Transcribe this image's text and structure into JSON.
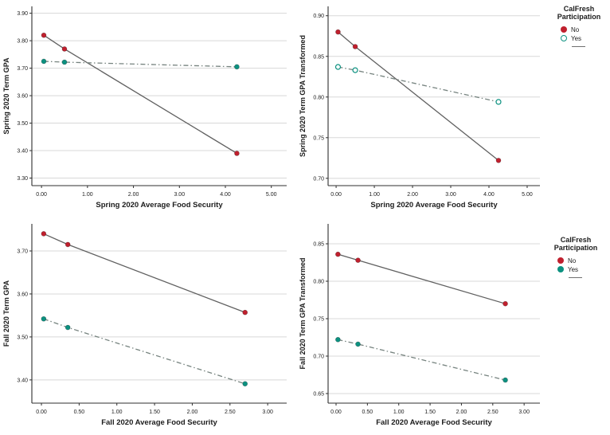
{
  "colors": {
    "no": "#c0202e",
    "yes": "#0c9180",
    "fit_line": "#606060",
    "dash_line": "#76837f",
    "grid": "#d8d8d8",
    "axis": "#2f2f2f",
    "text": "#1c1c1c",
    "background": "#ffffff"
  },
  "legends": {
    "top": {
      "title": [
        "CalFresh",
        "Participation"
      ],
      "items": [
        {
          "label": "No",
          "marker": "filled",
          "color": "#c0202e"
        },
        {
          "label": "Yes",
          "marker": "open",
          "color": "#0c9180"
        }
      ],
      "line_swatch": true
    },
    "bottom": {
      "title": [
        "CalFresh",
        "Participation"
      ],
      "items": [
        {
          "label": "No",
          "marker": "filled",
          "color": "#c0202e"
        },
        {
          "label": "Yes",
          "marker": "filled",
          "color": "#0c9180"
        }
      ],
      "line_swatch": true
    }
  },
  "chart_data": [
    {
      "type": "scatter",
      "id": "spring-term-gpa",
      "xlabel": "Spring 2020 Average Food Security",
      "ylabel": "Spring 2020 Term GPA",
      "xlim": [
        -0.21,
        5.334
      ],
      "ylim": [
        3.2725,
        3.925
      ],
      "xticks": [
        {
          "v": 0,
          "label": "0.00"
        },
        {
          "v": 1,
          "label": "1.00"
        },
        {
          "v": 2,
          "label": "2.00"
        },
        {
          "v": 3,
          "label": "3.00"
        },
        {
          "v": 4,
          "label": "4.00"
        },
        {
          "v": 5,
          "label": "5.00"
        }
      ],
      "yticks": [
        {
          "v": 3.3,
          "label": "3.30"
        },
        {
          "v": 3.4,
          "label": "3.40"
        },
        {
          "v": 3.5,
          "label": "3.50"
        },
        {
          "v": 3.6,
          "label": "3.60"
        },
        {
          "v": 3.7,
          "label": "3.70"
        },
        {
          "v": 3.8,
          "label": "3.80"
        },
        {
          "v": 3.9,
          "label": "3.90"
        }
      ],
      "grid": "horizontal",
      "series": [
        {
          "name": "No",
          "marker": "filled",
          "colorKey": "no",
          "line": "solid",
          "points": [
            [
              0.05,
              3.82
            ],
            [
              0.5,
              3.77
            ],
            [
              4.25,
              3.39
            ]
          ]
        },
        {
          "name": "Yes",
          "marker": "filled",
          "colorKey": "yes",
          "line": "dashdot",
          "points": [
            [
              0.05,
              3.725
            ],
            [
              0.5,
              3.722
            ],
            [
              4.25,
              3.705
            ]
          ]
        }
      ]
    },
    {
      "type": "scatter",
      "id": "spring-term-gpa-transformed",
      "xlabel": "Spring 2020 Average Food Security",
      "ylabel": "Spring 2020 Term GPA Transformed",
      "xlim": [
        -0.21,
        5.334
      ],
      "ylim": [
        0.691,
        0.9115
      ],
      "xticks": [
        {
          "v": 0,
          "label": "0.00"
        },
        {
          "v": 1,
          "label": "1.00"
        },
        {
          "v": 2,
          "label": "2.00"
        },
        {
          "v": 3,
          "label": "3.00"
        },
        {
          "v": 4,
          "label": "4.00"
        },
        {
          "v": 5,
          "label": "5.00"
        }
      ],
      "yticks": [
        {
          "v": 0.7,
          "label": "0.70"
        },
        {
          "v": 0.75,
          "label": "0.75"
        },
        {
          "v": 0.8,
          "label": "0.80"
        },
        {
          "v": 0.85,
          "label": "0.85"
        },
        {
          "v": 0.9,
          "label": "0.90"
        }
      ],
      "grid": "horizontal",
      "series": [
        {
          "name": "No",
          "marker": "filled",
          "colorKey": "no",
          "line": "solid",
          "points": [
            [
              0.05,
              0.88
            ],
            [
              0.5,
              0.862
            ],
            [
              4.25,
              0.722
            ]
          ]
        },
        {
          "name": "Yes",
          "marker": "open",
          "colorKey": "yes",
          "line": "dashdot",
          "points": [
            [
              0.05,
              0.837
            ],
            [
              0.5,
              0.833
            ],
            [
              4.25,
              0.794
            ]
          ]
        }
      ]
    },
    {
      "type": "scatter",
      "id": "fall-term-gpa",
      "xlabel": "Fall 2020 Average Food Security",
      "ylabel": "Fall 2020 Term GPA",
      "xlim": [
        -0.127,
        3.252
      ],
      "ylim": [
        3.346,
        3.763
      ],
      "xticks": [
        {
          "v": 0,
          "label": "0.00"
        },
        {
          "v": 0.5,
          "label": "0.50"
        },
        {
          "v": 1,
          "label": "1.00"
        },
        {
          "v": 1.5,
          "label": "1.50"
        },
        {
          "v": 2,
          "label": "2.00"
        },
        {
          "v": 2.5,
          "label": "2.50"
        },
        {
          "v": 3,
          "label": "3.00"
        }
      ],
      "yticks": [
        {
          "v": 3.4,
          "label": "3.40"
        },
        {
          "v": 3.5,
          "label": "3.50"
        },
        {
          "v": 3.6,
          "label": "3.60"
        },
        {
          "v": 3.7,
          "label": "3.70"
        }
      ],
      "grid": "horizontal",
      "series": [
        {
          "name": "No",
          "marker": "filled",
          "colorKey": "no",
          "line": "solid",
          "points": [
            [
              0.03,
              3.74
            ],
            [
              0.35,
              3.715
            ],
            [
              2.7,
              3.557
            ]
          ]
        },
        {
          "name": "Yes",
          "marker": "filled",
          "colorKey": "yes",
          "line": "dashdot",
          "points": [
            [
              0.03,
              3.542
            ],
            [
              0.35,
              3.522
            ],
            [
              2.7,
              3.391
            ]
          ]
        }
      ]
    },
    {
      "type": "scatter",
      "id": "fall-term-gpa-transformed",
      "xlabel": "Fall 2020 Average Food Security",
      "ylabel": "Fall 2020 Term GPA Transformed",
      "xlim": [
        -0.127,
        3.252
      ],
      "ylim": [
        0.6372,
        0.8766
      ],
      "xticks": [
        {
          "v": 0,
          "label": "0.00"
        },
        {
          "v": 0.5,
          "label": "0.50"
        },
        {
          "v": 1,
          "label": "1.00"
        },
        {
          "v": 1.5,
          "label": "1.50"
        },
        {
          "v": 2,
          "label": "2.00"
        },
        {
          "v": 2.5,
          "label": "2.50"
        },
        {
          "v": 3,
          "label": "3.00"
        }
      ],
      "yticks": [
        {
          "v": 0.65,
          "label": "0.65"
        },
        {
          "v": 0.7,
          "label": "0.70"
        },
        {
          "v": 0.75,
          "label": "0.75"
        },
        {
          "v": 0.8,
          "label": "0.80"
        },
        {
          "v": 0.85,
          "label": "0.85"
        }
      ],
      "grid": "horizontal",
      "series": [
        {
          "name": "No",
          "marker": "filled",
          "colorKey": "no",
          "line": "solid",
          "points": [
            [
              0.03,
              0.836
            ],
            [
              0.35,
              0.828
            ],
            [
              2.7,
              0.77
            ]
          ]
        },
        {
          "name": "Yes",
          "marker": "filled",
          "colorKey": "yes",
          "line": "dashdot",
          "points": [
            [
              0.03,
              0.722
            ],
            [
              0.35,
              0.716
            ],
            [
              2.7,
              0.668
            ]
          ]
        }
      ]
    }
  ]
}
